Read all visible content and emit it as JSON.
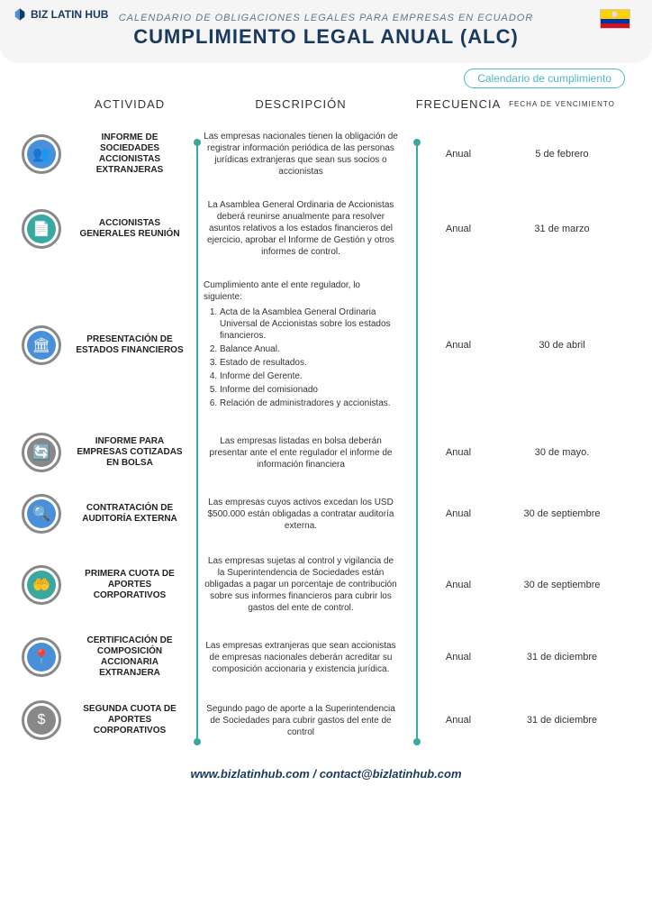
{
  "header": {
    "logo_text": "BIZ LATIN HUB",
    "subtitle": "CALENDARIO DE OBLIGACIONES LEGALES PARA EMPRESAS EN ECUADOR",
    "title": "CUMPLIMIENTO LEGAL ANUAL (ALC)",
    "badge": "Calendario de cumplimiento"
  },
  "columns": {
    "activity": "ACTIVIDAD",
    "description": "DESCRIPCIÓN",
    "frequency": "FRECUENCIA",
    "due": "FECHA DE VENCIMIENTO"
  },
  "colors": {
    "teal": "#3aa89e",
    "blue": "#4a90d9",
    "gray": "#888888",
    "navy": "#1a3a5c",
    "accent_border": "#4db8c4"
  },
  "rows": [
    {
      "icon_glyph": "👥",
      "icon_bg": "#4a90d9",
      "icon_border": "#888888",
      "activity": "INFORME DE SOCIEDADES ACCIONISTAS EXTRANJERAS",
      "description": "Las empresas nacionales tienen la obligación de registrar información periódica de las personas jurídicas extranjeras que sean sus socios o accionistas",
      "frequency": "Anual",
      "due": "5 de febrero",
      "desc_align": "center"
    },
    {
      "icon_glyph": "📄",
      "icon_bg": "#3aa89e",
      "icon_border": "#888888",
      "activity": "ACCIONISTAS GENERALES REUNIÓN",
      "description": "La Asamblea General Ordinaria de Accionistas deberá reunirse anualmente para resolver asuntos relativos a los estados financieros del ejercicio, aprobar el Informe de Gestión y otros informes de control.",
      "frequency": "Anual",
      "due": "31 de marzo",
      "desc_align": "center"
    },
    {
      "icon_glyph": "🏛",
      "icon_bg": "#4a90d9",
      "icon_border": "#888888",
      "activity": "PRESENTACIÓN DE ESTADOS FINANCIEROS",
      "description_intro": "Cumplimiento ante el ente regulador, lo siguiente:",
      "description_list": [
        "Acta de la Asamblea General Ordinaria Universal de Accionistas sobre los estados financieros.",
        "Balance Anual.",
        "Estado de resultados.",
        "Informe del Gerente.",
        "Informe del comisionado",
        "Relación de administradores y accionistas."
      ],
      "frequency": "Anual",
      "due": "30 de abril",
      "desc_align": "left"
    },
    {
      "icon_glyph": "🔄",
      "icon_bg": "#888888",
      "icon_border": "#888888",
      "activity": "INFORME PARA EMPRESAS COTIZADAS EN BOLSA",
      "description": "Las empresas listadas en bolsa deberán presentar ante el ente regulador el informe de información financiera",
      "frequency": "Anual",
      "due": "30 de mayo.",
      "desc_align": "center"
    },
    {
      "icon_glyph": "🔍",
      "icon_bg": "#4a90d9",
      "icon_border": "#888888",
      "activity": "CONTRATACIÓN DE AUDITORÍA EXTERNA",
      "description": "Las empresas cuyos activos excedan los USD $500.000 están obligadas a contratar auditoría externa.",
      "frequency": "Anual",
      "due": "30 de septiembre",
      "desc_align": "center"
    },
    {
      "icon_glyph": "🤲",
      "icon_bg": "#3aa89e",
      "icon_border": "#888888",
      "activity": "PRIMERA CUOTA DE APORTES CORPORATIVOS",
      "description": "Las empresas sujetas al control y vigilancia de la Superintendencia de Sociedades están obligadas a pagar un porcentaje de contribución sobre sus informes financieros para cubrir los gastos del ente de control.",
      "frequency": "Anual",
      "due": "30 de septiembre",
      "desc_align": "center"
    },
    {
      "icon_glyph": "📍",
      "icon_bg": "#4a90d9",
      "icon_border": "#888888",
      "activity": "CERTIFICACIÓN DE COMPOSICIÓN ACCIONARIA EXTRANJERA",
      "description": "Las empresas extranjeras que sean accionistas de empresas nacionales deberán acreditar su composición accionaria y existencia jurídica.",
      "frequency": "Anual",
      "due": "31 de diciembre",
      "desc_align": "center"
    },
    {
      "icon_glyph": "$",
      "icon_bg": "#888888",
      "icon_border": "#888888",
      "activity": "SEGUNDA CUOTA DE APORTES CORPORATIVOS",
      "description": "Segundo pago de aporte a la Superintendencia de Sociedades para cubrir gastos del ente de control",
      "frequency": "Anual",
      "due": "31 de diciembre",
      "desc_align": "center"
    }
  ],
  "footer": "www.bizlatinhub.com / contact@bizlatinhub.com"
}
